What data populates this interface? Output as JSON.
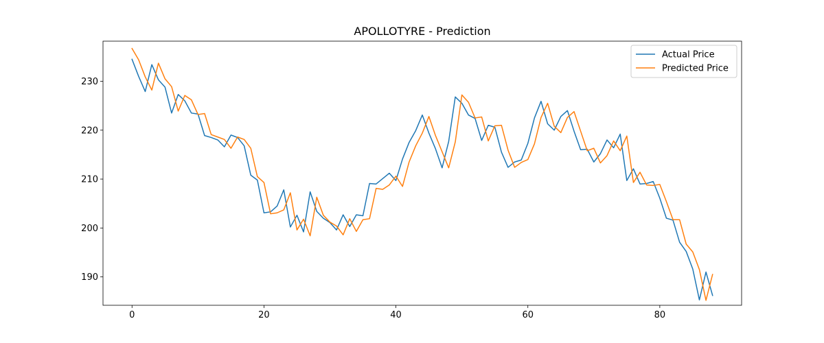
{
  "chart_data": {
    "type": "line",
    "title": "APOLLOTYRE - Prediction",
    "xlabel": "",
    "ylabel": "",
    "xlim": [
      -4.4,
      92.4
    ],
    "ylim": [
      184.2,
      238.2
    ],
    "xticks": [
      0,
      20,
      40,
      60,
      80
    ],
    "yticks": [
      190,
      200,
      210,
      220,
      230
    ],
    "grid": false,
    "legend": {
      "position": "top-right",
      "entries": [
        "Actual Price",
        "Predicted Price"
      ]
    },
    "series": [
      {
        "name": "Actual Price",
        "color": "#1f77b4",
        "values": [
          234.5,
          231.0,
          227.9,
          233.4,
          230.3,
          228.8,
          223.5,
          227.3,
          226.0,
          223.5,
          223.3,
          218.9,
          218.5,
          218.0,
          216.6,
          219.0,
          218.5,
          216.8,
          210.8,
          209.8,
          203.1,
          203.3,
          204.5,
          207.8,
          200.2,
          202.6,
          199.2,
          207.4,
          203.4,
          202.0,
          201.1,
          199.6,
          202.7,
          200.3,
          202.7,
          202.5,
          209.1,
          209.0,
          210.1,
          211.2,
          209.7,
          214.1,
          217.5,
          219.9,
          223.1,
          219.4,
          216.2,
          212.3,
          217.7,
          226.8,
          225.5,
          223.1,
          222.4,
          217.9,
          221.0,
          220.6,
          215.5,
          212.4,
          213.5,
          213.9,
          217.3,
          222.5,
          225.9,
          221.3,
          220.0,
          222.8,
          224.0,
          219.8,
          216.0,
          216.1,
          213.5,
          215.2,
          218.0,
          216.4,
          219.2,
          209.7,
          212.1,
          209.0,
          209.1,
          209.5,
          206.1,
          202.0,
          201.6,
          197.1,
          195.2,
          191.6,
          185.3,
          191.0,
          186.2
        ]
      },
      {
        "name": "Predicted Price",
        "color": "#ff7f0e",
        "values": [
          236.7,
          234.4,
          230.9,
          228.2,
          233.7,
          230.5,
          228.9,
          223.9,
          227.1,
          226.2,
          223.2,
          223.4,
          219.1,
          218.6,
          218.1,
          216.3,
          218.6,
          218.1,
          216.3,
          210.5,
          209.3,
          202.9,
          203.1,
          203.7,
          207.2,
          199.6,
          201.8,
          198.4,
          206.3,
          202.6,
          201.2,
          200.4,
          198.6,
          201.9,
          199.3,
          201.7,
          201.9,
          208.1,
          207.9,
          208.8,
          210.6,
          208.5,
          213.5,
          216.8,
          219.4,
          222.8,
          218.9,
          215.6,
          212.3,
          217.6,
          227.2,
          225.7,
          222.5,
          222.7,
          217.8,
          220.9,
          221.0,
          215.9,
          212.4,
          213.4,
          214.0,
          217.2,
          222.6,
          225.5,
          220.8,
          219.5,
          222.6,
          223.8,
          219.8,
          215.8,
          216.3,
          213.3,
          214.8,
          217.8,
          215.8,
          218.8,
          209.3,
          211.4,
          208.8,
          208.7,
          208.9,
          205.4,
          201.7,
          201.7,
          196.7,
          195.1,
          191.5,
          185.2,
          190.5
        ]
      }
    ]
  }
}
